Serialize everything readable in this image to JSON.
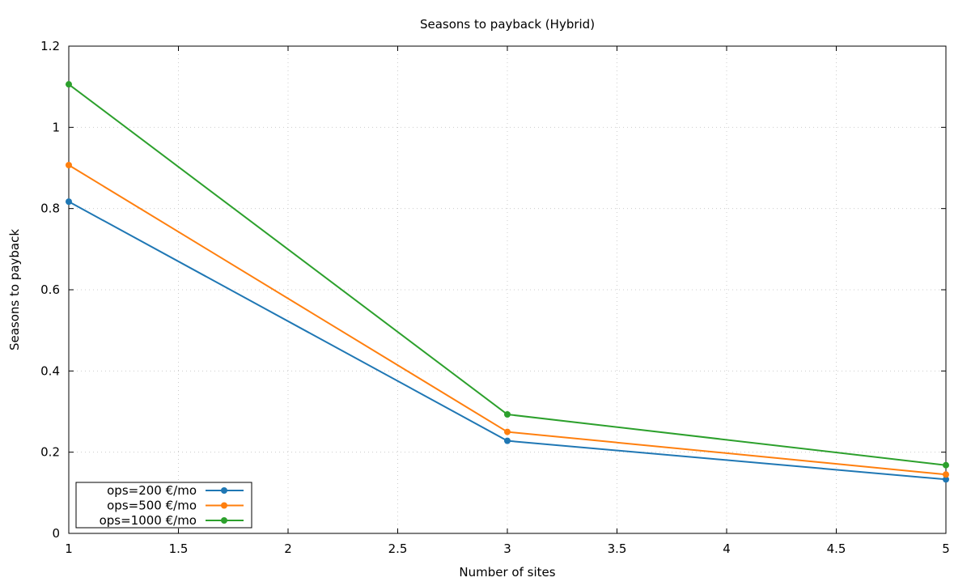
{
  "chart_data": {
    "type": "line",
    "title": "Seasons to payback (Hybrid)",
    "xlabel": "Number of sites",
    "ylabel": "Seasons to payback",
    "xlim": [
      1,
      5
    ],
    "ylim": [
      0,
      1.2
    ],
    "xticks": [
      "1",
      "1.5",
      "2",
      "2.5",
      "3",
      "3.5",
      "4",
      "4.5",
      "5"
    ],
    "yticks": [
      "0",
      "0.2",
      "0.4",
      "0.6",
      "0.8",
      "1",
      "1.2"
    ],
    "grid": true,
    "legend_position": "bottom-left",
    "x": [
      1,
      3,
      5
    ],
    "series": [
      {
        "name": "ops=200 €/mo",
        "color": "#1f77b4",
        "values": [
          0.817,
          0.228,
          0.133
        ]
      },
      {
        "name": "ops=500 €/mo",
        "color": "#ff7f0e",
        "values": [
          0.907,
          0.25,
          0.145
        ]
      },
      {
        "name": "ops=1000 €/mo",
        "color": "#2ca02c",
        "values": [
          1.106,
          0.293,
          0.168
        ]
      }
    ]
  }
}
